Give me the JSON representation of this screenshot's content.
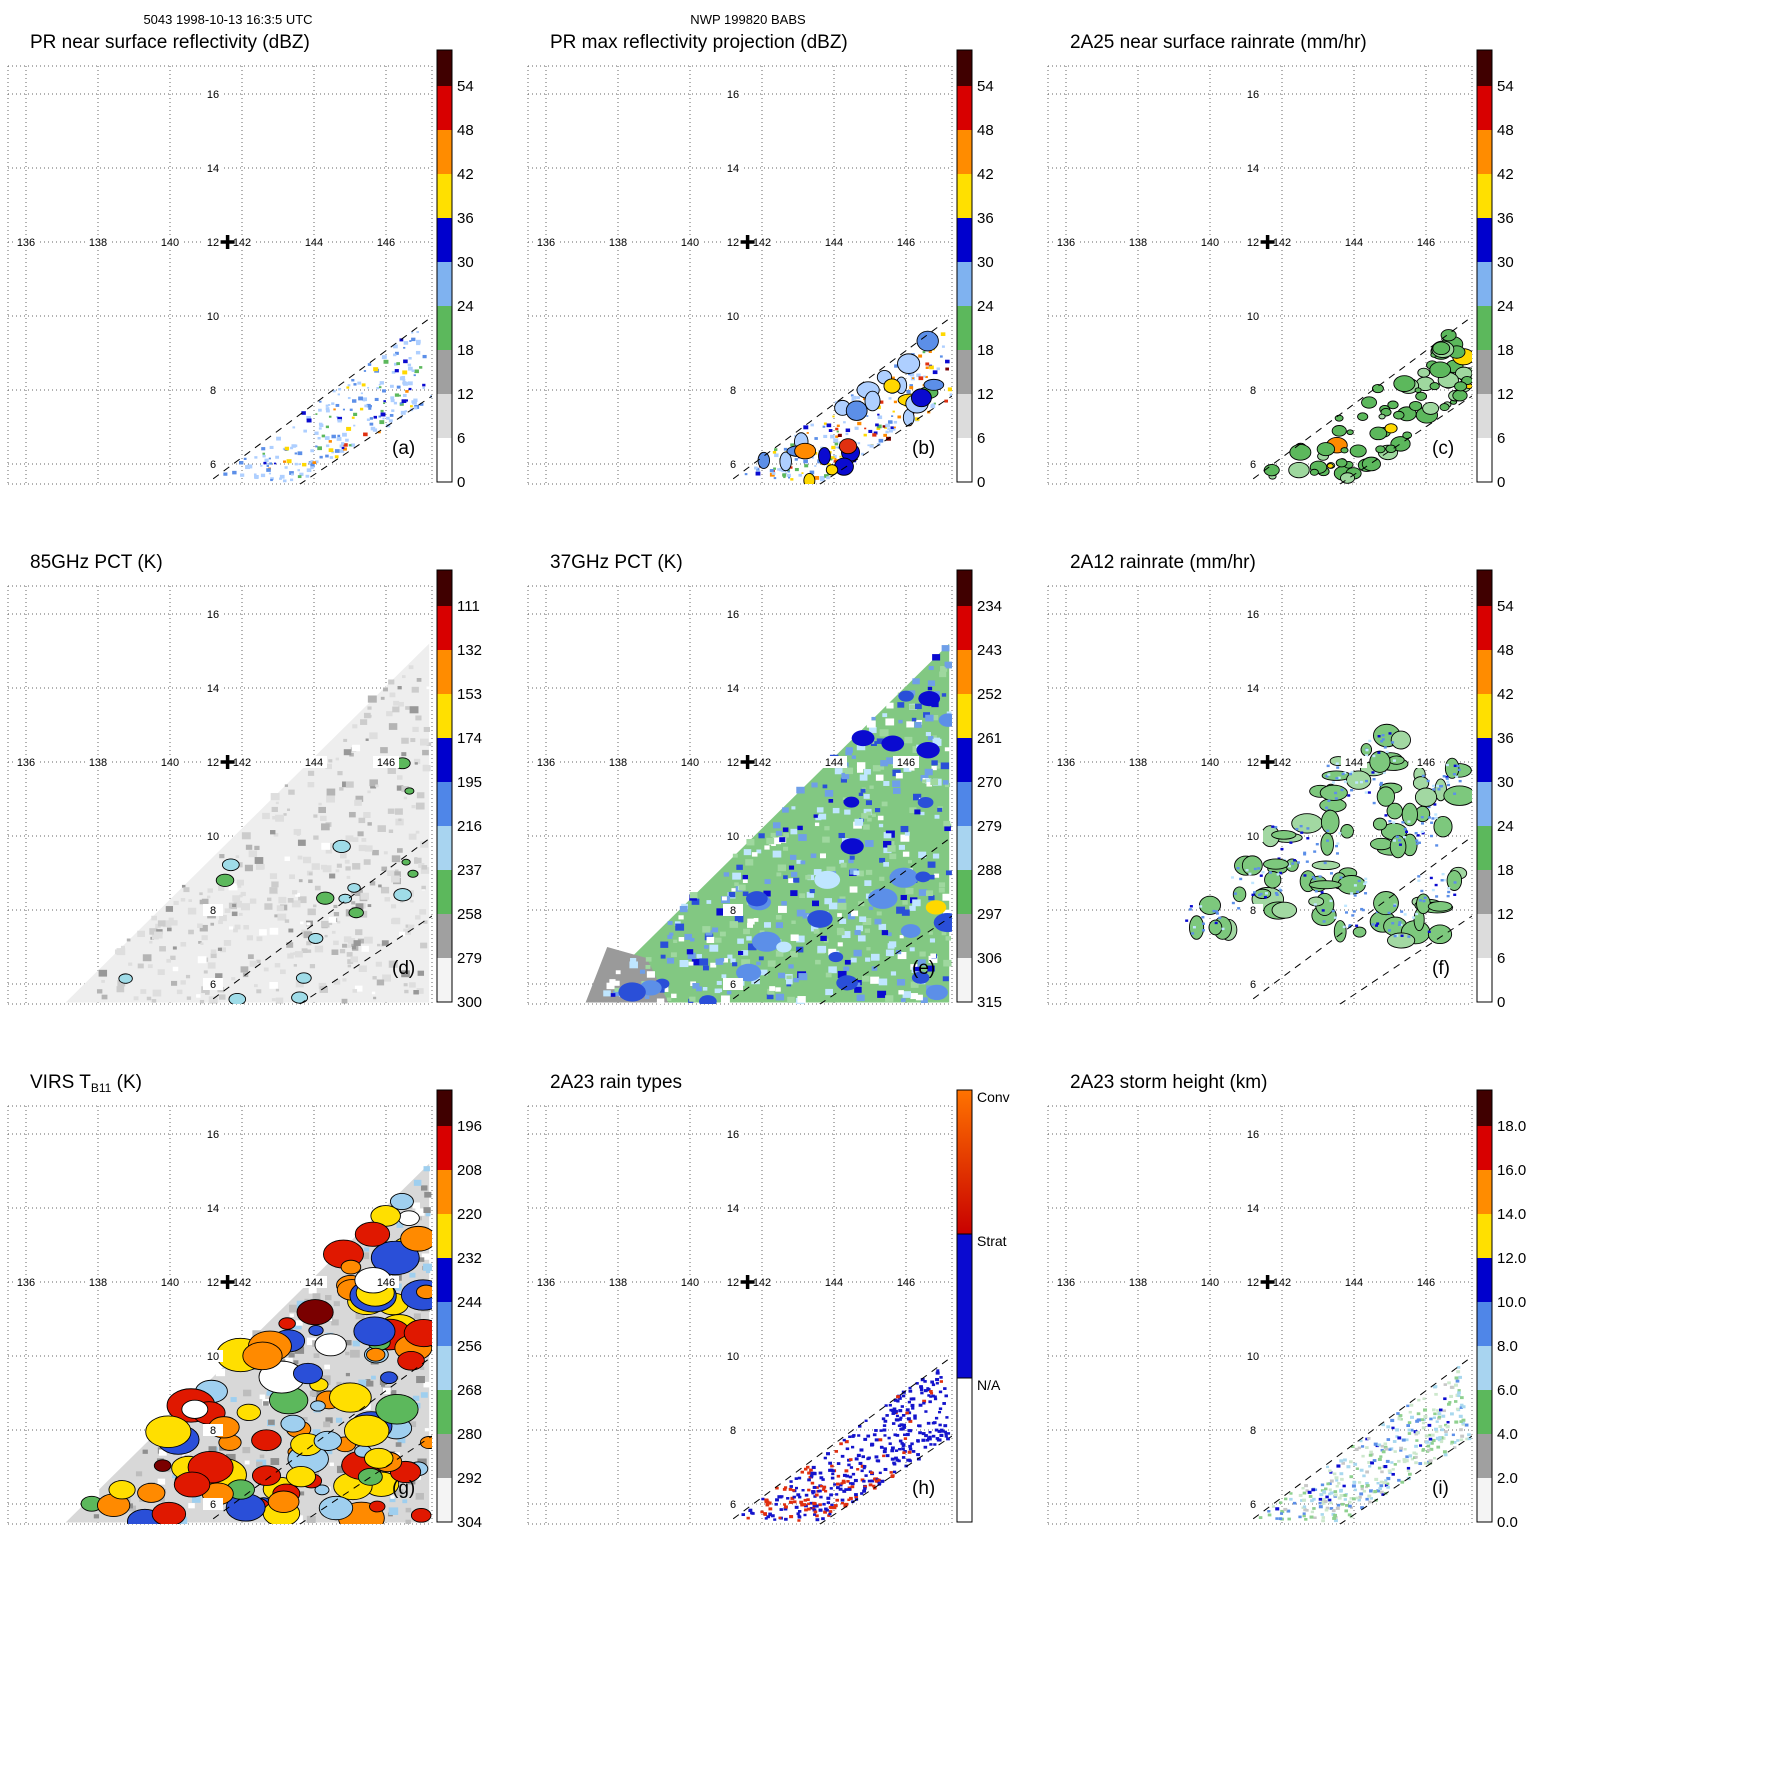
{
  "header": {
    "left": "5043 1998-10-13 16:3:5 UTC",
    "center": "NWP 199820 BABS"
  },
  "chart_data": {
    "type": "heatmap",
    "description": "3x3 grid of TRMM satellite swath maps (orbit 5043, 1998-10-13 16:3:5 UTC, NWP 199820 BABS) over 136E-146E, 6N-16N with vertical colorbars",
    "map": {
      "lon_ticks": [
        "136",
        "138",
        "140",
        "142",
        "144",
        "146"
      ],
      "lat_ticks": [
        "16",
        "14",
        "12",
        "10",
        "8",
        "6"
      ],
      "marker_lonlat": [
        141.6,
        12.0
      ]
    },
    "swath": {
      "narrow_band": {
        "u": [
          [
            141.3,
            5.6
          ],
          [
            147.0,
            9.8
          ]
        ],
        "v": [
          [
            143.7,
            5.5
          ],
          [
            147.3,
            7.8
          ]
        ]
      },
      "wide_triangle": [
        [
          137.1,
          5.5
        ],
        [
          147.2,
          15.2
        ],
        [
          147.2,
          5.5
        ]
      ],
      "dashed_narrow": [
        [
          [
            141.2,
            5.6
          ],
          [
            147.3,
            10.0
          ]
        ],
        [
          [
            143.6,
            5.45
          ],
          [
            147.3,
            7.85
          ]
        ]
      ]
    },
    "colorbar_palettes": {
      "dbz": [
        "#400000",
        "#d80000",
        "#ff8c00",
        "#ffe000",
        "#0000cd",
        "#7fb2f0",
        "#5cb85c",
        "#a0a0a0",
        "#dcdcdc",
        "#ffffff"
      ],
      "pct": [
        "#400000",
        "#d80000",
        "#ff8c00",
        "#ffe000",
        "#0000cd",
        "#4f86e8",
        "#a8d4f0",
        "#5cb85c",
        "#a0a0a0",
        "#f4f4f4"
      ]
    },
    "panels": [
      {
        "id": "a",
        "letter": "(a)",
        "title": "PR near surface reflectivity (dBZ)",
        "colorbar": {
          "labels": [
            "54",
            "48",
            "42",
            "36",
            "30",
            "24",
            "18",
            "12",
            "6",
            "0"
          ],
          "palette": "dbz"
        },
        "art": {
          "swath": "narrow",
          "mode": "speckle",
          "count": 240,
          "size": [
            2,
            5
          ],
          "palette": [
            [
              "#aecfff",
              50
            ],
            [
              "#5c8fe8",
              20
            ],
            [
              "#0a0ad0",
              5
            ],
            [
              "#5cb85c",
              9
            ],
            [
              "#ffd800",
              6
            ],
            [
              "#ff8a00",
              3
            ],
            [
              "#e03010",
              1
            ]
          ]
        }
      },
      {
        "id": "b",
        "letter": "(b)",
        "title": "PR max reflectivity projection (dBZ)",
        "colorbar": {
          "labels": [
            "54",
            "48",
            "42",
            "36",
            "30",
            "24",
            "18",
            "12",
            "6",
            "0"
          ],
          "palette": "dbz"
        },
        "art": {
          "swath": "narrow",
          "mode": "speckle-blob",
          "count": 260,
          "size": [
            2,
            5
          ],
          "palette": [
            [
              "#aecfff",
              34
            ],
            [
              "#5c8fe8",
              16
            ],
            [
              "#0a0ad0",
              8
            ],
            [
              "#5cb85c",
              8
            ],
            [
              "#ffd800",
              14
            ],
            [
              "#ff8a00",
              12
            ],
            [
              "#e03010",
              6
            ],
            [
              "#7a0000",
              2
            ]
          ],
          "blobs": {
            "count": 26,
            "size": [
              5,
              12
            ]
          }
        }
      },
      {
        "id": "c",
        "letter": "(c)",
        "title": "2A25 near surface rainrate (mm/hr)",
        "colorbar": {
          "labels": [
            "54",
            "48",
            "42",
            "36",
            "30",
            "24",
            "18",
            "12",
            "6",
            "0"
          ],
          "palette": "dbz"
        },
        "art": {
          "swath": "narrow",
          "mode": "blobs",
          "count": 80,
          "size": [
            3,
            11
          ],
          "palette": [
            [
              "#5cb85c",
              70
            ],
            [
              "#9fd89f",
              22
            ],
            [
              "#ffd800",
              5
            ],
            [
              "#ff8a00",
              3
            ]
          ]
        }
      },
      {
        "id": "d",
        "letter": "(d)",
        "title": "85GHz PCT (K)",
        "colorbar": {
          "labels": [
            "111",
            "132",
            "153",
            "174",
            "195",
            "216",
            "237",
            "258",
            "279",
            "300"
          ],
          "palette": "pct"
        },
        "art": {
          "swath": "wide",
          "mode": "field",
          "bg": "#eeeeee",
          "noise": {
            "count": 420,
            "size": [
              3,
              9
            ],
            "palette": [
              [
                "#dedede",
                38
              ],
              [
                "#cccccc",
                28
              ],
              [
                "#b4b4b4",
                20
              ],
              [
                "#989898",
                10
              ],
              [
                "#ffffff",
                4
              ]
            ]
          },
          "blobs": {
            "count": 18,
            "size": [
              4,
              9
            ],
            "stroke": true,
            "palette": [
              [
                "#9fdce8",
                55
              ],
              [
                "#5cb85c",
                45
              ]
            ]
          }
        }
      },
      {
        "id": "e",
        "letter": "(e)",
        "title": "37GHz PCT (K)",
        "colorbar": {
          "labels": [
            "234",
            "243",
            "252",
            "261",
            "270",
            "279",
            "288",
            "297",
            "306",
            "315"
          ],
          "palette": "pct"
        },
        "art": {
          "swath": "wide",
          "mode": "field",
          "bg": "#82c882",
          "noise": {
            "count": 520,
            "size": [
              4,
              9
            ],
            "palette": [
              [
                "#9fd89f",
                26
              ],
              [
                "#bfe6ff",
                24
              ],
              [
                "#6f9fe8",
                18
              ],
              [
                "#ffffff",
                12
              ],
              [
                "#2a4fd8",
                12
              ],
              [
                "#0a0ad0",
                8
              ]
            ]
          },
          "blobs": {
            "count": 30,
            "size": [
              6,
              15
            ],
            "stroke": false,
            "palette": [
              [
                "#5c8fe8",
                35
              ],
              [
                "#2a4fd8",
                30
              ],
              [
                "#0a0ad0",
                20
              ],
              [
                "#bfe6ff",
                13
              ],
              [
                "#ffd800",
                2
              ]
            ]
          },
          "corner_patch": {
            "color": "#9a9a9a",
            "poly_lonlat": [
              [
                137.1,
                5.5
              ],
              [
                139.4,
                5.5
              ],
              [
                138.8,
                6.7
              ],
              [
                137.7,
                7.0
              ]
            ]
          }
        }
      },
      {
        "id": "f",
        "letter": "(f)",
        "title": "2A12 rainrate (mm/hr)",
        "colorbar": {
          "labels": [
            "54",
            "48",
            "42",
            "36",
            "30",
            "24",
            "18",
            "12",
            "6",
            "0"
          ],
          "palette": "dbz"
        },
        "art": {
          "swath": "wide",
          "mode": "clusters",
          "blob_palette": [
            [
              "#7dc87d",
              68
            ],
            [
              "#a2d8a2",
              32
            ]
          ],
          "speckle_palette": [
            [
              "#5c8fe8",
              50
            ],
            [
              "#0a0ad0",
              18
            ],
            [
              "#bfe6ff",
              32
            ]
          ],
          "clusters_lonlat": [
            [
              144.0,
              11.3,
              1.1,
              12
            ],
            [
              145.6,
              10.3,
              0.9,
              10
            ],
            [
              146.4,
              11.5,
              0.7,
              7
            ],
            [
              142.7,
              9.5,
              1.2,
              12
            ],
            [
              141.3,
              8.6,
              0.9,
              9
            ],
            [
              143.8,
              8.2,
              1.1,
              11
            ],
            [
              145.6,
              7.7,
              0.8,
              7
            ],
            [
              139.9,
              7.7,
              0.7,
              5
            ],
            [
              144.8,
              12.4,
              0.6,
              5
            ],
            [
              146.3,
              8.6,
              0.7,
              6
            ]
          ]
        }
      },
      {
        "id": "g",
        "letter": "(g)",
        "title": "VIRS TB11 (K)",
        "title_parts": [
          {
            "t": "VIRS T"
          },
          {
            "t": "B11",
            "sub": true
          },
          {
            "t": " (K)"
          }
        ],
        "colorbar": {
          "labels": [
            "196",
            "208",
            "220",
            "232",
            "244",
            "256",
            "268",
            "280",
            "292",
            "304"
          ],
          "palette": "pct"
        },
        "art": {
          "swath": "wide",
          "mode": "field",
          "bg": "#d8d8d8",
          "noise": {
            "count": 320,
            "size": [
              4,
              10
            ],
            "palette": [
              [
                "#bdbdbd",
                30
              ],
              [
                "#9fcfef",
                22
              ],
              [
                "#ffffff",
                18
              ],
              [
                "#8f8f8f",
                30
              ]
            ]
          },
          "blobs": {
            "count": 110,
            "size": [
              7,
              24
            ],
            "stroke": true,
            "palette": [
              [
                "#ffdf00",
                24
              ],
              [
                "#ff8a00",
                22
              ],
              [
                "#e01800",
                18
              ],
              [
                "#2a4fd8",
                13
              ],
              [
                "#9fcfef",
                11
              ],
              [
                "#5cb85c",
                6
              ],
              [
                "#7a0000",
                3
              ],
              [
                "#ffffff",
                3
              ]
            ]
          }
        }
      },
      {
        "id": "h",
        "letter": "(h)",
        "title": "2A23 rain types",
        "colorbar": {
          "type": "categories",
          "categories": [
            {
              "label": "Conv",
              "color_top": "#ff7300",
              "color_bottom": "#c80000"
            },
            {
              "label": "Strat",
              "color_top": "#0a0ad0",
              "color_bottom": "#0a0ad0"
            },
            {
              "label": "N/A",
              "color_top": "#ffffff",
              "color_bottom": "#ffffff"
            }
          ]
        },
        "art": {
          "swath": "narrow",
          "mode": "raintype",
          "count": 430,
          "size": [
            3,
            4
          ],
          "colors": {
            "conv": "#e03010",
            "strat": "#1414cc"
          }
        }
      },
      {
        "id": "i",
        "letter": "(i)",
        "title": "2A23 storm height (km)",
        "colorbar": {
          "labels": [
            "18.0",
            "16.0",
            "14.0",
            "12.0",
            "10.0",
            "8.0",
            "6.0",
            "4.0",
            "2.0",
            "0.0"
          ],
          "palette": "pct"
        },
        "art": {
          "swath": "narrow",
          "mode": "squares",
          "count": 380,
          "size": [
            3,
            4
          ],
          "palette": [
            [
              "#cde8cd",
              28
            ],
            [
              "#8fd08f",
              20
            ],
            [
              "#a8d8ef",
              18
            ],
            [
              "#5c8fe8",
              15
            ],
            [
              "#0a0ad0",
              6
            ],
            [
              "#c8c8c8",
              13
            ]
          ]
        }
      }
    ]
  }
}
